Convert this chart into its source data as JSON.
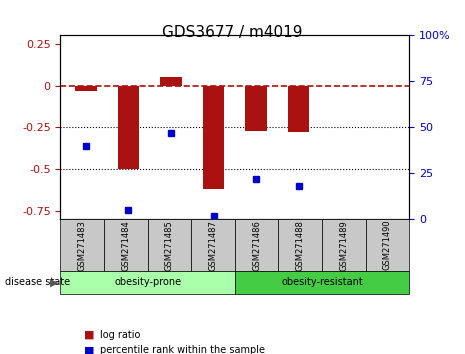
{
  "title": "GDS3677 / m4019",
  "samples": [
    "GSM271483",
    "GSM271484",
    "GSM271485",
    "GSM271487",
    "GSM271486",
    "GSM271488",
    "GSM271489",
    "GSM271490"
  ],
  "log_ratio": [
    -0.03,
    -0.5,
    0.05,
    -0.62,
    -0.27,
    -0.28,
    0.0,
    0.0
  ],
  "pct_rank": [
    40,
    5,
    47,
    2,
    22,
    18,
    null,
    null
  ],
  "ylim_left": [
    -0.8,
    0.3
  ],
  "ylim_right": [
    0,
    100
  ],
  "bar_color": "#AA1111",
  "dot_color": "#0000CC",
  "prone_color_light": "#AAFFAA",
  "resistant_color": "#44CC44",
  "bg_gray": "#C8C8C8",
  "legend_bar_label": "log ratio",
  "legend_dot_label": "percentile rank within the sample",
  "ylabel_left_ticks": [
    0.25,
    0,
    -0.25,
    -0.5,
    -0.75
  ],
  "ylabel_right_ticks": [
    100,
    75,
    50,
    25,
    0
  ],
  "hline_y": 0,
  "dotted_lines": [
    -0.25,
    -0.5
  ],
  "bar_width": 0.5
}
